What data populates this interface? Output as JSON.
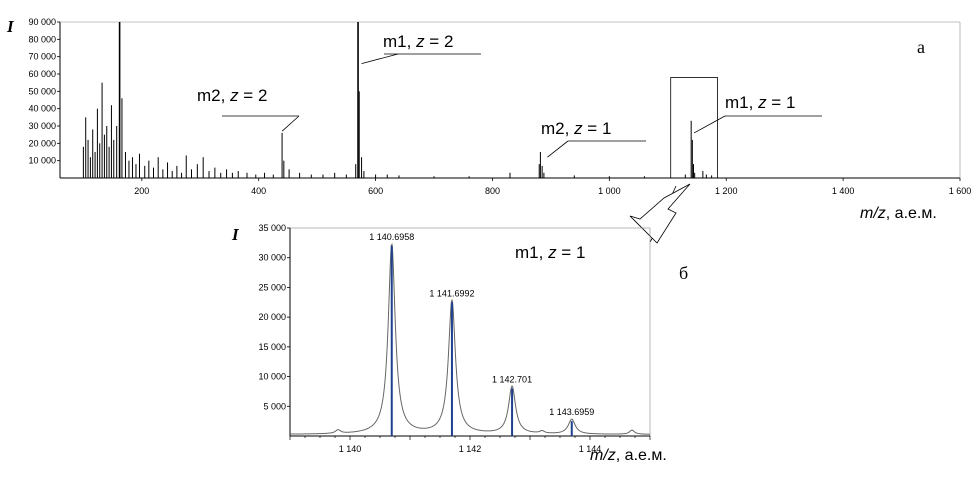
{
  "chart_data": [
    {
      "type": "line",
      "panel_label": "а",
      "ylabel": "I",
      "xlabel_var": "m/z",
      "xlabel_unit": ",  а.е.м.",
      "xlim": [
        60,
        1600
      ],
      "ylim": [
        0,
        90000
      ],
      "yticks": [
        {
          "value": 10000,
          "label": "10 000"
        },
        {
          "value": 20000,
          "label": "20 000"
        },
        {
          "value": 30000,
          "label": "30 000"
        },
        {
          "value": 40000,
          "label": "40 000"
        },
        {
          "value": 50000,
          "label": "50 000"
        },
        {
          "value": 60000,
          "label": "60 000"
        },
        {
          "value": 70000,
          "label": "70 000"
        },
        {
          "value": 80000,
          "label": "80 000"
        },
        {
          "value": 90000,
          "label": "90 000"
        }
      ],
      "xticks": [
        {
          "value": 200,
          "label": "200"
        },
        {
          "value": 400,
          "label": "400"
        },
        {
          "value": 600,
          "label": "600"
        },
        {
          "value": 800,
          "label": "800"
        },
        {
          "value": 1000,
          "label": "1 000"
        },
        {
          "value": 1200,
          "label": "1 200"
        },
        {
          "value": 1400,
          "label": "1 400"
        },
        {
          "value": 1600,
          "label": "1 600"
        }
      ],
      "peaks": [
        {
          "x": 100,
          "y": 18000
        },
        {
          "x": 104,
          "y": 35000
        },
        {
          "x": 108,
          "y": 22000
        },
        {
          "x": 112,
          "y": 12000
        },
        {
          "x": 116,
          "y": 28000
        },
        {
          "x": 120,
          "y": 15000
        },
        {
          "x": 124,
          "y": 40000
        },
        {
          "x": 128,
          "y": 20000
        },
        {
          "x": 132,
          "y": 55000
        },
        {
          "x": 136,
          "y": 25000
        },
        {
          "x": 140,
          "y": 30000
        },
        {
          "x": 144,
          "y": 18000
        },
        {
          "x": 148,
          "y": 42000
        },
        {
          "x": 152,
          "y": 22000
        },
        {
          "x": 157,
          "y": 30000
        },
        {
          "x": 162,
          "y": 90000
        },
        {
          "x": 166,
          "y": 46000
        },
        {
          "x": 172,
          "y": 15000
        },
        {
          "x": 178,
          "y": 10000
        },
        {
          "x": 184,
          "y": 12000
        },
        {
          "x": 190,
          "y": 8000
        },
        {
          "x": 196,
          "y": 14000
        },
        {
          "x": 205,
          "y": 7000
        },
        {
          "x": 212,
          "y": 10000
        },
        {
          "x": 220,
          "y": 6000
        },
        {
          "x": 228,
          "y": 12000
        },
        {
          "x": 236,
          "y": 5000
        },
        {
          "x": 244,
          "y": 9000
        },
        {
          "x": 252,
          "y": 4000
        },
        {
          "x": 260,
          "y": 7000
        },
        {
          "x": 268,
          "y": 3000
        },
        {
          "x": 276,
          "y": 13000
        },
        {
          "x": 285,
          "y": 5000
        },
        {
          "x": 295,
          "y": 8000
        },
        {
          "x": 305,
          "y": 12000
        },
        {
          "x": 315,
          "y": 4000
        },
        {
          "x": 325,
          "y": 6000
        },
        {
          "x": 335,
          "y": 3000
        },
        {
          "x": 345,
          "y": 5000
        },
        {
          "x": 355,
          "y": 3000
        },
        {
          "x": 365,
          "y": 4000
        },
        {
          "x": 380,
          "y": 3000
        },
        {
          "x": 395,
          "y": 2000
        },
        {
          "x": 410,
          "y": 3000
        },
        {
          "x": 425,
          "y": 2000
        },
        {
          "x": 440,
          "y": 26000
        },
        {
          "x": 443,
          "y": 10000
        },
        {
          "x": 452,
          "y": 5000
        },
        {
          "x": 470,
          "y": 3000
        },
        {
          "x": 490,
          "y": 2000
        },
        {
          "x": 510,
          "y": 2000
        },
        {
          "x": 530,
          "y": 3000
        },
        {
          "x": 550,
          "y": 2000
        },
        {
          "x": 566,
          "y": 8000
        },
        {
          "x": 570,
          "y": 90000
        },
        {
          "x": 572,
          "y": 50000
        },
        {
          "x": 576,
          "y": 12000
        },
        {
          "x": 580,
          "y": 4000
        },
        {
          "x": 600,
          "y": 2000
        },
        {
          "x": 620,
          "y": 2000
        },
        {
          "x": 640,
          "y": 1500
        },
        {
          "x": 700,
          "y": 1000
        },
        {
          "x": 760,
          "y": 1000
        },
        {
          "x": 830,
          "y": 3000
        },
        {
          "x": 880,
          "y": 8000
        },
        {
          "x": 882,
          "y": 15000
        },
        {
          "x": 885,
          "y": 7000
        },
        {
          "x": 888,
          "y": 3000
        },
        {
          "x": 940,
          "y": 1500
        },
        {
          "x": 1000,
          "y": 1000
        },
        {
          "x": 1060,
          "y": 1000
        },
        {
          "x": 1130,
          "y": 2000
        },
        {
          "x": 1140,
          "y": 33000
        },
        {
          "x": 1142,
          "y": 22000
        },
        {
          "x": 1144,
          "y": 8000
        },
        {
          "x": 1146,
          "y": 3000
        },
        {
          "x": 1160,
          "y": 4000
        },
        {
          "x": 1166,
          "y": 2000
        },
        {
          "x": 1175,
          "y": 1500
        }
      ],
      "annotations": [
        {
          "name": "m1",
          "z": "2",
          "anchor_x": 576,
          "anchor_y": 66000
        },
        {
          "name": "m2",
          "z": "2",
          "anchor_x": 440,
          "anchor_y": 27000
        },
        {
          "name": "m2",
          "z": "1",
          "anchor_x": 894,
          "anchor_y": 12000
        },
        {
          "name": "m1",
          "z": "1",
          "anchor_x": 1145,
          "anchor_y": 26000
        }
      ],
      "zoom_region": {
        "x0": 1105,
        "x1": 1185,
        "y0": 0,
        "y1": 58000
      }
    },
    {
      "type": "line",
      "panel_label": "б",
      "ylabel": "I",
      "xlabel_var": "m/z",
      "xlabel_unit": ",  а.е.м.",
      "title_name": "m1",
      "title_z": "1",
      "xlim": [
        1139,
        1145
      ],
      "ylim": [
        0,
        35000
      ],
      "yticks": [
        {
          "value": 5000,
          "label": "5 000"
        },
        {
          "value": 10000,
          "label": "10 000"
        },
        {
          "value": 15000,
          "label": "15 000"
        },
        {
          "value": 20000,
          "label": "20 000"
        },
        {
          "value": 25000,
          "label": "25 000"
        },
        {
          "value": 30000,
          "label": "30 000"
        },
        {
          "value": 35000,
          "label": "35 000"
        }
      ],
      "xticks": [
        {
          "value": 1140,
          "label": "1 140"
        },
        {
          "value": 1142,
          "label": "1 142"
        },
        {
          "value": 1144,
          "label": "1 144"
        }
      ],
      "peaks": [
        {
          "x": 1140.6958,
          "y": 32000,
          "label": "1 140.6958"
        },
        {
          "x": 1141.6992,
          "y": 22500,
          "label": "1 141.6992"
        },
        {
          "x": 1142.701,
          "y": 8000,
          "label": "1 142.701"
        },
        {
          "x": 1143.6959,
          "y": 2500,
          "label": "1 143.6959"
        }
      ],
      "minor_bumps": [
        {
          "x": 1139.8,
          "y": 600
        },
        {
          "x": 1144.7,
          "y": 700
        },
        {
          "x": 1143.2,
          "y": 400
        }
      ]
    }
  ],
  "labels": {
    "eq": " = "
  }
}
